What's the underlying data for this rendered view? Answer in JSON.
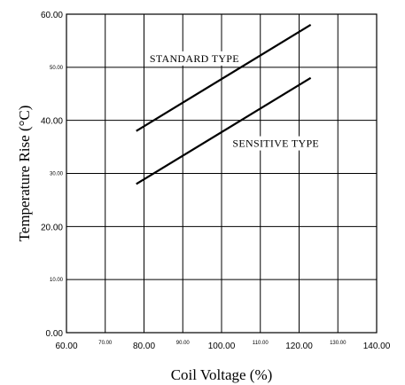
{
  "chart_data": {
    "type": "line",
    "title": "",
    "xlabel": "Coil Voltage (%)",
    "ylabel": "Temperature Rise (°C)",
    "xlim": [
      60,
      140
    ],
    "ylim": [
      0,
      60
    ],
    "grid": true,
    "x_ticks": [
      {
        "value": 60,
        "label": "60.00",
        "style": "major"
      },
      {
        "value": 70,
        "label": "70.00",
        "style": "minor"
      },
      {
        "value": 80,
        "label": "80.00",
        "style": "major"
      },
      {
        "value": 90,
        "label": "90.00",
        "style": "minor"
      },
      {
        "value": 100,
        "label": "100.00",
        "style": "major"
      },
      {
        "value": 110,
        "label": "110.00",
        "style": "minor"
      },
      {
        "value": 120,
        "label": "120.00",
        "style": "major"
      },
      {
        "value": 130,
        "label": "130.00",
        "style": "minor"
      },
      {
        "value": 140,
        "label": "140.00",
        "style": "major"
      }
    ],
    "y_ticks": [
      {
        "value": 0,
        "label": "0.00",
        "style": "major"
      },
      {
        "value": 10,
        "label": "10.00",
        "style": "minor"
      },
      {
        "value": 20,
        "label": "20.00",
        "style": "major"
      },
      {
        "value": 30,
        "label": "30.00",
        "style": "minor"
      },
      {
        "value": 40,
        "label": "40.00",
        "style": "major"
      },
      {
        "value": 50,
        "label": "50.00",
        "style": "minor"
      },
      {
        "value": 60,
        "label": "60.00",
        "style": "major"
      }
    ],
    "series": [
      {
        "name": "STANDARD TYPE",
        "x": [
          78,
          123
        ],
        "y": [
          38,
          58
        ],
        "label_at": {
          "x": 93,
          "y": 51
        }
      },
      {
        "name": "SENSITIVE TYPE",
        "x": [
          78,
          123
        ],
        "y": [
          28,
          48
        ],
        "label_at": {
          "x": 114,
          "y": 35
        }
      }
    ]
  }
}
